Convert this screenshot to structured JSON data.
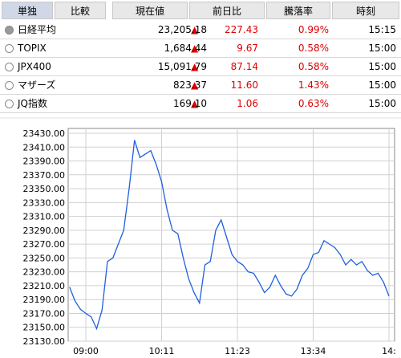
{
  "tabs": [
    "単独",
    "比較"
  ],
  "table": {
    "columns": [
      "現在値",
      "前日比",
      "騰落率",
      "時刻"
    ],
    "rows": [
      [
        "日経平均",
        "23,205.18",
        "227.43",
        "0.99%",
        "15:15"
      ],
      [
        "TOPIX",
        "1,684.44",
        "9.67",
        "0.58%",
        "15:00"
      ],
      [
        "JPX400",
        "15,091.79",
        "87.14",
        "0.58%",
        "15:00"
      ],
      [
        "マザーズ",
        "823.37",
        "11.60",
        "1.43%",
        "15:00"
      ],
      [
        "JQ指数",
        "169.10",
        "1.06",
        "0.63%",
        "15:00"
      ]
    ]
  },
  "chart_data": {
    "type": "line",
    "color": "#1f5fe0",
    "grid": true,
    "categories": [
      null,
      null,
      null,
      "09:00",
      null,
      null,
      null,
      null,
      null,
      null,
      null,
      null,
      null,
      null,
      null,
      null,
      null,
      "10:11",
      null,
      null,
      null,
      null,
      null,
      null,
      null,
      null,
      null,
      null,
      null,
      null,
      null,
      "11:23",
      null,
      null,
      null,
      null,
      null,
      null,
      null,
      null,
      null,
      null,
      null,
      null,
      null,
      "13:34",
      null,
      null,
      null,
      null,
      null,
      null,
      null,
      null,
      null,
      null,
      null,
      null,
      null,
      "14:"
    ],
    "values": [
      23208,
      23188,
      23176,
      23170,
      23165,
      23148,
      23175,
      23245,
      23250,
      23270,
      23290,
      23350,
      23420,
      23395,
      23400,
      23405,
      23385,
      23360,
      23320,
      23290,
      23285,
      23250,
      23220,
      23200,
      23185,
      23240,
      23245,
      23290,
      23305,
      23280,
      23255,
      23245,
      23240,
      23230,
      23228,
      23215,
      23200,
      23208,
      23225,
      23210,
      23198,
      23195,
      23205,
      23225,
      23235,
      23255,
      23258,
      23275,
      23270,
      23265,
      23255,
      23240,
      23248,
      23240,
      23245,
      23232,
      23225,
      23228,
      23215,
      23195
    ],
    "ylim": [
      23130,
      23430
    ],
    "yticks": [
      {
        "value": 23130,
        "label": "23130.00"
      },
      {
        "value": 23150,
        "label": "23150.00"
      },
      {
        "value": 23170,
        "label": "23170.00"
      },
      {
        "value": 23190,
        "label": "23190.00"
      },
      {
        "value": 23210,
        "label": "23210.00"
      },
      {
        "value": 23230,
        "label": "23230.00"
      },
      {
        "value": 23250,
        "label": "23250.00"
      },
      {
        "value": 23270,
        "label": "23270.00"
      },
      {
        "value": 23290,
        "label": "23290.00"
      },
      {
        "value": 23310,
        "label": "23310.00"
      },
      {
        "value": 23330,
        "label": "23330.00"
      },
      {
        "value": 23350,
        "label": "23350.00"
      },
      {
        "value": 23370,
        "label": "23370.00"
      },
      {
        "value": 23390,
        "label": "23390.00"
      },
      {
        "value": 23410,
        "label": "23410.00"
      },
      {
        "value": 23430,
        "label": "23430.00"
      }
    ]
  }
}
